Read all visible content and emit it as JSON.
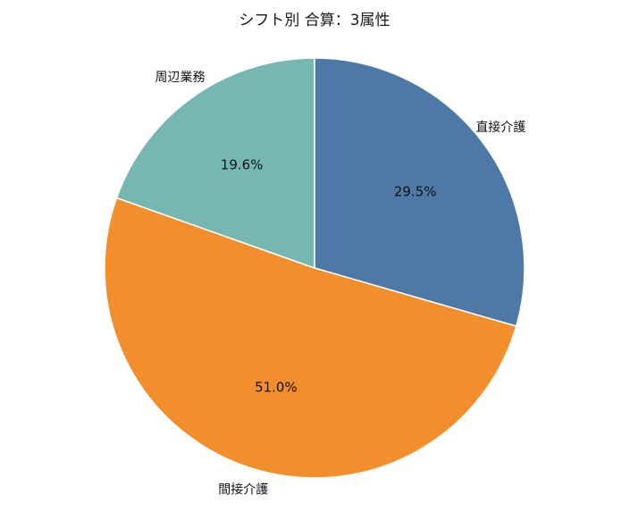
{
  "chart_data": {
    "type": "pie",
    "title": "シフト別 合算：3属性",
    "start_angle_deg": 90,
    "direction": "clockwise",
    "slices": [
      {
        "label": "直接介護",
        "value": 29.5,
        "display": "29.5%",
        "color": "#4e79a7"
      },
      {
        "label": "間接介護",
        "value": 51.0,
        "display": "51.0%",
        "color": "#f28e2b"
      },
      {
        "label": "周辺業務",
        "value": 19.6,
        "display": "19.6%",
        "color": "#76b7b2"
      }
    ]
  }
}
